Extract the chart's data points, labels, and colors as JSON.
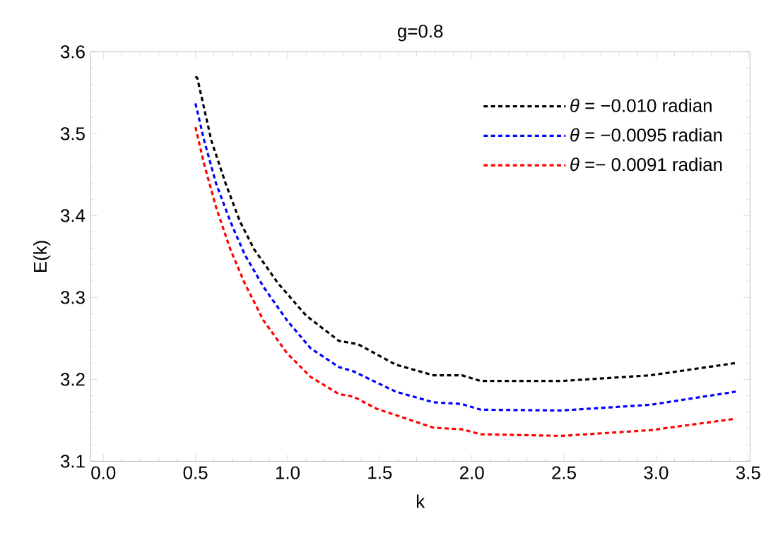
{
  "chart_data": {
    "type": "line",
    "title": "g=0.8",
    "xlabel": "k",
    "ylabel": "E(k)",
    "xlim": [
      -0.07,
      3.51
    ],
    "ylim": [
      3.1,
      3.6
    ],
    "xticks": [
      {
        "value": 0,
        "label": "0.0"
      },
      0.5,
      {
        "value": 1,
        "label": "1.0"
      },
      1.5,
      {
        "value": 2,
        "label": "2.0"
      },
      2.5,
      {
        "value": 3,
        "label": "3.0"
      },
      3.5
    ],
    "yticks": [
      3.1,
      3.2,
      3.3,
      3.4,
      3.5,
      3.6
    ],
    "legend": "top right",
    "line_style": "dashed",
    "grid": false,
    "series": [
      {
        "name": "*θ* = −0.010 radian",
        "color": "#000000",
        "x": [
          0.5,
          0.51,
          0.587,
          0.664,
          0.741,
          0.818,
          0.946,
          1.1,
          1.279,
          1.382,
          1.587,
          1.792,
          1.946,
          2.048,
          2.485,
          2.97,
          3.433
        ],
        "values": [
          3.57,
          3.568,
          3.491,
          3.439,
          3.393,
          3.359,
          3.318,
          3.278,
          3.247,
          3.243,
          3.218,
          3.205,
          3.205,
          3.198,
          3.198,
          3.205,
          3.22
        ]
      },
      {
        "name": "*θ* = −0.0095 radian",
        "color": "#0000ff",
        "x": [
          0.5,
          0.548,
          0.612,
          0.689,
          0.766,
          0.869,
          0.997,
          1.125,
          1.279,
          1.356,
          1.587,
          1.792,
          1.946,
          2.048,
          2.485,
          2.97,
          3.433
        ],
        "values": [
          3.537,
          3.491,
          3.439,
          3.393,
          3.353,
          3.313,
          3.272,
          3.238,
          3.215,
          3.21,
          3.185,
          3.172,
          3.17,
          3.163,
          3.162,
          3.169,
          3.185
        ]
      },
      {
        "name": "*θ* =− 0.0091 radian",
        "color": "#ff0000",
        "x": [
          0.5,
          0.548,
          0.612,
          0.689,
          0.766,
          0.869,
          0.997,
          1.125,
          1.279,
          1.356,
          1.485,
          1.792,
          1.946,
          2.048,
          2.485,
          2.97,
          3.433
        ],
        "values": [
          3.508,
          3.462,
          3.41,
          3.359,
          3.318,
          3.272,
          3.232,
          3.203,
          3.182,
          3.179,
          3.164,
          3.141,
          3.139,
          3.133,
          3.131,
          3.138,
          3.152
        ]
      }
    ]
  }
}
